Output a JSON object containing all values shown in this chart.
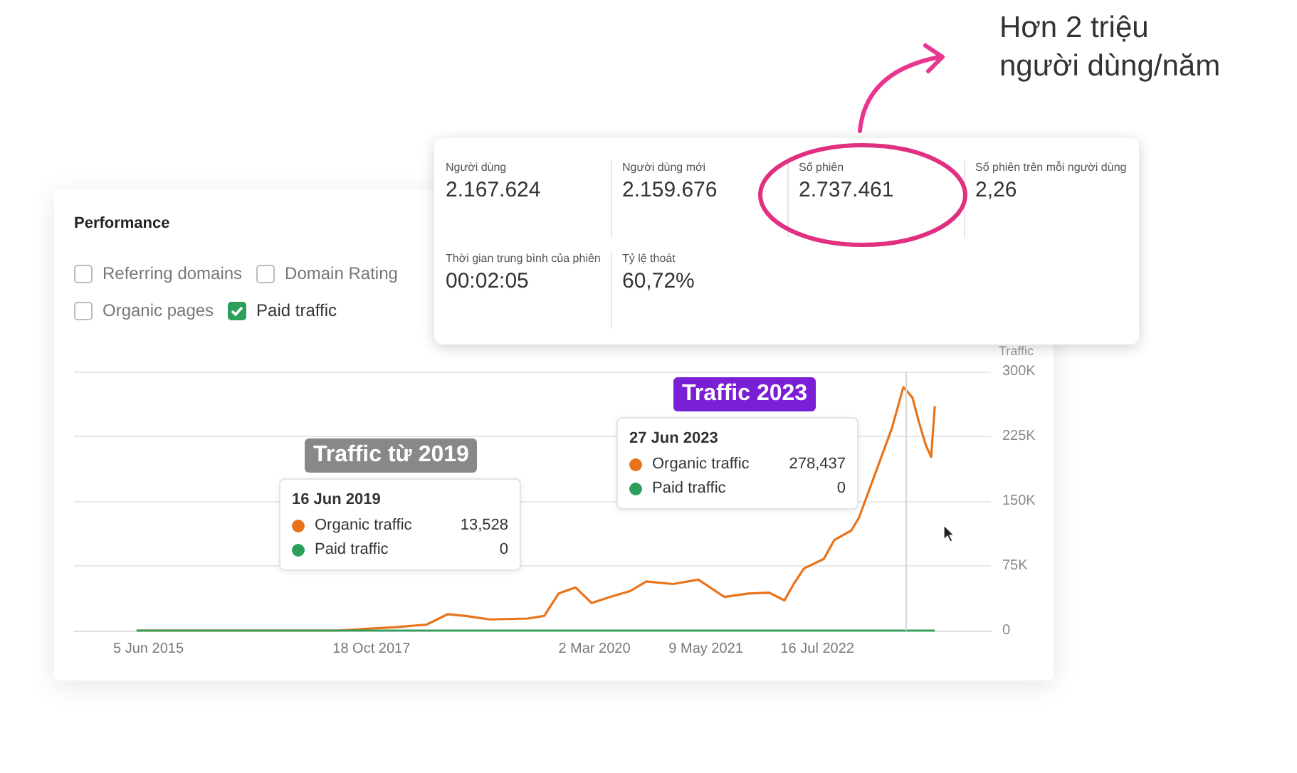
{
  "chart_data": [
    {
      "type": "other",
      "title": "Hơn 2 triệu người dùng/năm",
      "annotations": [
        "Người dùng",
        "2.167.624",
        "Người dùng mới",
        "2.159.676",
        "Số phiên",
        "2.737.461",
        "Số phiên trên mỗi người dùng",
        "2,26",
        "Thời gian trung bình của phiên",
        "00:02:05",
        "Tỷ lệ thoát",
        "60,72%"
      ]
    },
    {
      "type": "line",
      "title": "Performance",
      "ylabel": "Traffic",
      "marker": "none",
      "line_style": "solid",
      "grid": "y",
      "legend": "bottom left",
      "xlim": [
        "2014-08-20",
        "2024-05-20"
      ],
      "ylim": [
        0,
        300000
      ],
      "xticks": [
        {
          "value": "2015-06-05",
          "label": "5 Jun 2015"
        },
        {
          "value": "2017-10-18",
          "label": "18 Oct 2017"
        },
        {
          "value": "2020-03-02",
          "label": "2 Mar 2020"
        },
        {
          "value": "2021-05-09",
          "label": "9 May 2021"
        },
        {
          "value": "2022-07-16",
          "label": "16 Jul 2022"
        }
      ],
      "yticks": [
        0,
        {
          "value": 75000,
          "label": "75K"
        },
        {
          "value": 150000,
          "label": "150K"
        },
        {
          "value": 225000,
          "label": "225K"
        },
        {
          "value": 300000,
          "label": "300K"
        }
      ],
      "series": [
        {
          "name": "Organic traffic",
          "color": "#e8731a",
          "x": [
            "2015-04-20",
            "2017-06-01",
            "2018-01-20",
            "2018-05-20",
            "2018-08-10",
            "2018-10-20",
            "2019-01-20",
            "2019-06-16",
            "2019-08-20",
            "2019-10-15",
            "2019-12-20",
            "2020-02-20",
            "2020-05-01",
            "2020-07-20",
            "2020-09-20",
            "2021-01-01",
            "2021-04-10",
            "2021-07-20",
            "2021-10-20",
            "2022-01-10",
            "2022-03-10",
            "2022-04-15",
            "2022-05-25",
            "2022-08-10",
            "2022-09-20",
            "2022-11-25",
            "2022-12-25",
            "2023-05-01",
            "2023-06-15",
            "2023-06-27",
            "2023-07-20",
            "2023-08-15",
            "2023-09-10",
            "2023-10-01",
            "2023-10-15"
          ],
          "values": [
            0,
            0,
            4000,
            7000,
            19000,
            17000,
            13000,
            14000,
            17000,
            43000,
            50000,
            32000,
            39000,
            46000,
            57000,
            54000,
            59000,
            39000,
            43000,
            44000,
            35000,
            54000,
            72000,
            83000,
            105000,
            116000,
            131000,
            234000,
            282000,
            278000,
            270000,
            241000,
            215000,
            201000,
            260000
          ]
        },
        {
          "name": "Paid traffic",
          "color": "#2e9e5b",
          "x": [
            "2015-04-20",
            "2023-10-15"
          ],
          "values": [
            0,
            0
          ]
        }
      ],
      "ref_lines": [
        {
          "axis": "x",
          "value": "2023-06-27",
          "color": "#d6d6d6"
        }
      ],
      "annotations": [
        "Traffic từ 2019",
        "16 Jun 2019",
        "13,528",
        "0",
        "Traffic 2023",
        "27 Jun 2023",
        "278,437",
        "0",
        "Referring domains",
        "Domain Rating",
        "Organic pages",
        "Paid traffic"
      ]
    }
  ]
}
